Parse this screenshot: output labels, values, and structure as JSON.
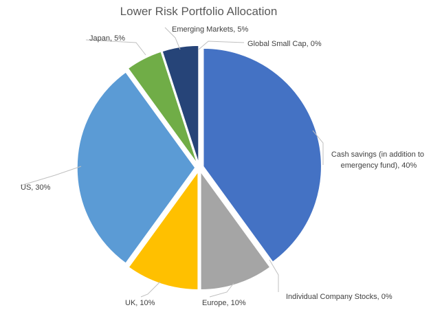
{
  "chart_data": {
    "type": "pie",
    "title": "Lower Risk Portfolio Allocation",
    "legend": "none",
    "slices": [
      {
        "label": "Cash savings (in addition to emergency fund)",
        "value": 40,
        "color": "#4472C4",
        "data_label": [
          "Cash savings (in addition to",
          "emergency fund), 40%"
        ]
      },
      {
        "label": "Individual Company Stocks",
        "value": 0,
        "color": "#ED7D31",
        "data_label": [
          "Individual Company Stocks, 0%"
        ]
      },
      {
        "label": "Europe",
        "value": 10,
        "color": "#A5A5A5",
        "data_label": [
          "Europe, 10%"
        ]
      },
      {
        "label": "UK",
        "value": 10,
        "color": "#FFC000",
        "data_label": [
          "UK, 10%"
        ]
      },
      {
        "label": "US",
        "value": 30,
        "color": "#5B9BD5",
        "data_label": [
          "US, 30%"
        ]
      },
      {
        "label": "Japan",
        "value": 5,
        "color": "#70AD47",
        "data_label": [
          "Japan, 5%"
        ]
      },
      {
        "label": "Emerging Markets",
        "value": 5,
        "color": "#264478",
        "data_label": [
          "Emerging Markets, 5%"
        ]
      },
      {
        "label": "Global Small Cap",
        "value": 0,
        "color": "#9E480E",
        "data_label": [
          "Global Small Cap, 0%"
        ]
      }
    ]
  }
}
